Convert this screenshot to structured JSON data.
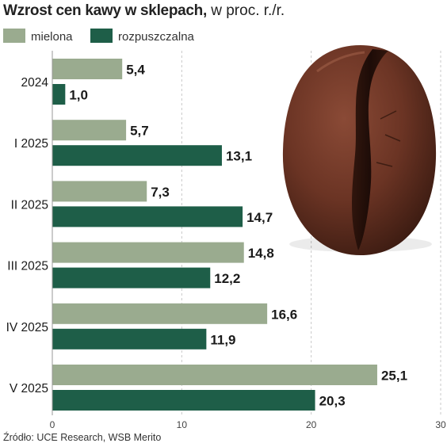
{
  "title_bold": "Wzrost cen kawy w sklepach,",
  "title_rest": "w proc. r./r.",
  "source": "Źródło: UCE Research, WSB Merito",
  "colors": {
    "mielona": "#9aab8f",
    "rozpuszczalna": "#1e5e48",
    "grid": "#c8c8c8",
    "text": "#1a1a1a"
  },
  "chart_data": {
    "type": "bar",
    "orientation": "horizontal",
    "title": "Wzrost cen kawy w sklepach, w proc. r./r.",
    "categories": [
      "2024",
      "I 2025",
      "II 2025",
      "III 2025",
      "IV 2025",
      "V 2025"
    ],
    "series": [
      {
        "name": "mielona",
        "values": [
          5.4,
          5.7,
          7.3,
          14.8,
          16.6,
          25.1
        ],
        "labels": [
          "5,4",
          "5,7",
          "7,3",
          "14,8",
          "16,6",
          "25,1"
        ]
      },
      {
        "name": "rozpuszczalna",
        "values": [
          1.0,
          13.1,
          14.7,
          12.2,
          11.9,
          20.3
        ],
        "labels": [
          "1,0",
          "13,1",
          "14,7",
          "12,2",
          "11,9",
          "20,3"
        ]
      }
    ],
    "xlim": [
      0,
      30
    ],
    "xticks": [
      "0",
      "10",
      "20",
      "30"
    ],
    "grid": true,
    "legend": "top-left"
  }
}
